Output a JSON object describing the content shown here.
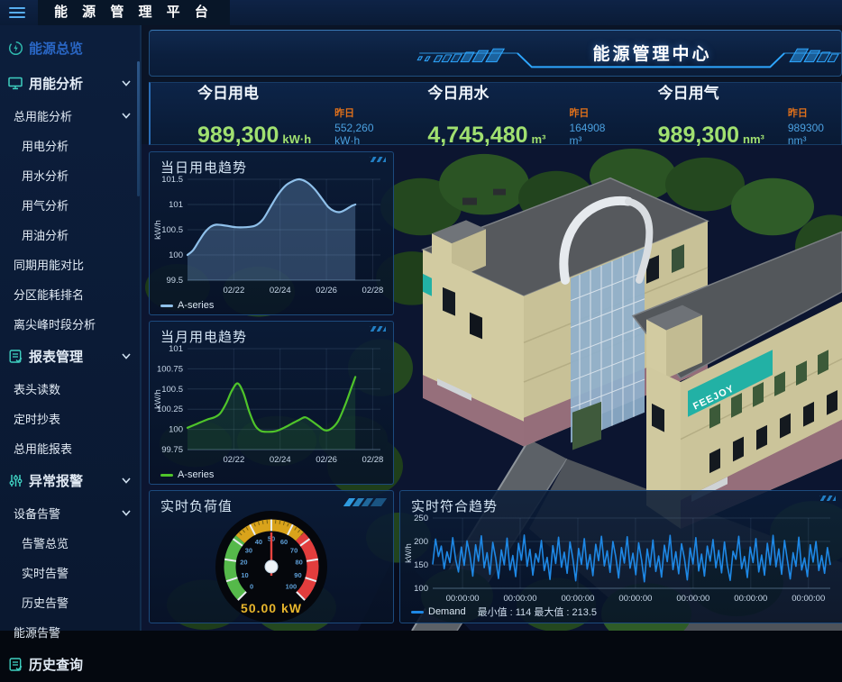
{
  "topbar": {
    "title": "能 源 管 理 平 台"
  },
  "header": {
    "title": "能源管理中心"
  },
  "sidebar": {
    "items": [
      {
        "name": "energy-overview",
        "label": "能源总览",
        "level": 0,
        "icon": "energy-overview-icon",
        "active": true
      },
      {
        "name": "energy-analysis",
        "label": "用能分析",
        "level": 0,
        "icon": "monitor-icon",
        "chevron": true
      },
      {
        "name": "total-energy-analysis",
        "label": "总用能分析",
        "level": 1,
        "chevron": true
      },
      {
        "name": "electricity-analysis",
        "label": "用电分析",
        "level": 2
      },
      {
        "name": "water-analysis",
        "label": "用水分析",
        "level": 2
      },
      {
        "name": "gas-analysis",
        "label": "用气分析",
        "level": 2
      },
      {
        "name": "oil-analysis",
        "label": "用油分析",
        "level": 2
      },
      {
        "name": "same-period-comparison",
        "label": "同期用能对比",
        "level": 1
      },
      {
        "name": "zone-energy-ranking",
        "label": "分区能耗排名",
        "level": 1
      },
      {
        "name": "peak-offpeak-analysis",
        "label": "离尖峰时段分析",
        "level": 1
      },
      {
        "name": "report-management",
        "label": "报表管理",
        "level": 0,
        "icon": "report-icon",
        "chevron": true
      },
      {
        "name": "meter-reading",
        "label": "表头读数",
        "level": 1
      },
      {
        "name": "scheduled-reading",
        "label": "定时抄表",
        "level": 1
      },
      {
        "name": "total-energy-report",
        "label": "总用能报表",
        "level": 1
      },
      {
        "name": "abnormal-alarm",
        "label": "异常报警",
        "level": 0,
        "icon": "alarm-icon",
        "chevron": true
      },
      {
        "name": "device-alarm",
        "label": "设备告警",
        "level": 1,
        "chevron": true
      },
      {
        "name": "alarm-overview",
        "label": "告警总览",
        "level": 2
      },
      {
        "name": "realtime-alarm",
        "label": "实时告警",
        "level": 2
      },
      {
        "name": "history-alarm",
        "label": "历史告警",
        "level": 2
      },
      {
        "name": "energy-alarm",
        "label": "能源告警",
        "level": 1
      },
      {
        "name": "history-query",
        "label": "历史查询",
        "level": 0,
        "icon": "history-icon"
      }
    ]
  },
  "kpis": [
    {
      "name": "kpi-electricity",
      "title": "今日用电",
      "value": "989,300",
      "unit": "kW·h",
      "prev_label": "昨日",
      "prev_value": "552,260 kW·h"
    },
    {
      "name": "kpi-water",
      "title": "今日用水",
      "value": "4,745,480",
      "unit": "m³",
      "prev_label": "昨日",
      "prev_value": "164908 m³"
    },
    {
      "name": "kpi-gas",
      "title": "今日用气",
      "value": "989,300",
      "unit": "nm³",
      "prev_label": "昨日",
      "prev_value": "989300 nm³"
    }
  ],
  "building_sign": "FEEJOY",
  "chart_data": [
    {
      "id": "daily_power_trend",
      "type": "area",
      "title": "当日用电趋势",
      "legend": "A-series",
      "color": "#8fc0ea",
      "fill": "rgba(130,175,225,0.30)",
      "smooth": true,
      "lw": 2.2,
      "ylabel": "kW/h",
      "ymin": 99.5,
      "ymax": 101.5,
      "yticks": [
        99.5,
        100,
        100.5,
        101,
        101.5
      ],
      "xticks": [
        {
          "f": 0.24,
          "label": "02/22"
        },
        {
          "f": 0.48,
          "label": "02/24"
        },
        {
          "f": 0.72,
          "label": "02/26"
        },
        {
          "f": 0.96,
          "label": "02/28"
        }
      ],
      "points": [
        [
          0,
          100
        ],
        [
          0.03,
          100.1
        ],
        [
          0.06,
          100.28
        ],
        [
          0.09,
          100.45
        ],
        [
          0.12,
          100.56
        ],
        [
          0.15,
          100.6
        ],
        [
          0.2,
          100.58
        ],
        [
          0.25,
          100.55
        ],
        [
          0.3,
          100.55
        ],
        [
          0.35,
          100.58
        ],
        [
          0.39,
          100.7
        ],
        [
          0.43,
          100.95
        ],
        [
          0.47,
          101.2
        ],
        [
          0.51,
          101.38
        ],
        [
          0.55,
          101.47
        ],
        [
          0.58,
          101.5
        ],
        [
          0.62,
          101.44
        ],
        [
          0.66,
          101.3
        ],
        [
          0.7,
          101.1
        ],
        [
          0.73,
          100.95
        ],
        [
          0.76,
          100.87
        ],
        [
          0.79,
          100.85
        ],
        [
          0.82,
          100.9
        ],
        [
          0.85,
          100.97
        ],
        [
          0.87,
          101
        ]
      ]
    },
    {
      "id": "monthly_power_trend",
      "type": "area",
      "title": "当月用电趋势",
      "legend": "A-series",
      "color": "#4fc42a",
      "fill": "rgba(50,140,60,0.20)",
      "smooth": true,
      "lw": 2.2,
      "ylabel": "kW/h",
      "ymin": 99.75,
      "ymax": 101,
      "yticks": [
        99.75,
        100,
        100.25,
        100.5,
        100.75,
        101
      ],
      "xticks": [
        {
          "f": 0.24,
          "label": "02/22"
        },
        {
          "f": 0.48,
          "label": "02/24"
        },
        {
          "f": 0.72,
          "label": "02/26"
        },
        {
          "f": 0.96,
          "label": "02/28"
        }
      ],
      "points": [
        [
          0,
          100.02
        ],
        [
          0.05,
          100.07
        ],
        [
          0.1,
          100.12
        ],
        [
          0.14,
          100.15
        ],
        [
          0.17,
          100.2
        ],
        [
          0.2,
          100.32
        ],
        [
          0.23,
          100.48
        ],
        [
          0.26,
          100.57
        ],
        [
          0.29,
          100.45
        ],
        [
          0.32,
          100.22
        ],
        [
          0.35,
          100.05
        ],
        [
          0.38,
          99.98
        ],
        [
          0.42,
          99.97
        ],
        [
          0.46,
          99.98
        ],
        [
          0.5,
          100.02
        ],
        [
          0.54,
          100.07
        ],
        [
          0.58,
          100.12
        ],
        [
          0.61,
          100.15
        ],
        [
          0.64,
          100.11
        ],
        [
          0.68,
          100.04
        ],
        [
          0.71,
          99.99
        ],
        [
          0.74,
          100
        ],
        [
          0.78,
          100.1
        ],
        [
          0.82,
          100.32
        ],
        [
          0.85,
          100.52
        ],
        [
          0.87,
          100.65
        ]
      ]
    },
    {
      "id": "realtime_demand_trend",
      "type": "line",
      "title": "实时符合趋势",
      "legend": "Demand",
      "stats": "最小值 : 114  最大值 : 213.5",
      "color": "#1e88e5",
      "smooth": false,
      "lw": 1.6,
      "ml": 34,
      "ylabel": "kW/h",
      "ymin": 100,
      "ymax": 250,
      "yticks": [
        100,
        150,
        200,
        250
      ],
      "xticks": [
        {
          "f": 0.075,
          "label": "00:00:00"
        },
        {
          "f": 0.22,
          "label": "00:00:00"
        },
        {
          "f": 0.365,
          "label": "00:00:00"
        },
        {
          "f": 0.51,
          "label": "00:00:00"
        },
        {
          "f": 0.655,
          "label": "00:00:00"
        },
        {
          "f": 0.8,
          "label": "00:00:00"
        },
        {
          "f": 0.945,
          "label": "00:00:00"
        }
      ],
      "values": [
        152,
        205,
        168,
        190,
        142,
        178,
        155,
        208,
        162,
        135,
        188,
        149,
        201,
        171,
        126,
        193,
        158,
        212,
        144,
        176,
        130,
        198,
        165,
        121,
        182,
        150,
        207,
        139,
        170,
        125,
        196,
        160,
        213.5,
        147,
        183,
        128,
        174,
        156,
        202,
        138,
        166,
        119,
        191,
        153,
        209,
        145,
        177,
        132,
        199,
        163,
        116,
        185,
        151,
        206,
        141,
        172,
        127,
        194,
        159,
        211,
        148,
        180,
        134,
        200,
        167,
        122,
        187,
        154,
        210,
        143,
        175,
        129,
        197,
        161,
        114,
        184,
        146,
        203,
        136,
        169,
        124,
        192,
        157,
        213,
        140,
        178,
        131,
        195,
        164,
        118,
        186,
        152,
        208,
        137,
        173,
        126,
        190,
        158,
        204,
        144,
        181,
        133,
        199,
        149,
        117,
        179,
        162,
        211,
        142,
        168,
        123,
        188,
        155,
        206,
        135,
        171,
        128,
        196,
        150,
        213,
        146,
        184,
        130,
        202,
        160,
        120,
        176,
        147,
        209,
        139,
        165,
        125,
        193,
        156,
        200,
        138,
        170,
        132,
        187,
        151
      ]
    },
    {
      "id": "realtime_load_gauge",
      "type": "gauge",
      "title": "实时负荷值",
      "min": 0,
      "max": 100,
      "value": 50,
      "value_label": "50.00 kW",
      "zones": [
        {
          "to": 32,
          "color": "#55b94a"
        },
        {
          "to": 66,
          "color": "#d9a31b"
        },
        {
          "to": 100,
          "color": "#e23d3d"
        }
      ],
      "tick_labels": [
        0,
        10,
        20,
        30,
        40,
        50,
        60,
        70,
        80,
        90,
        100
      ]
    }
  ]
}
